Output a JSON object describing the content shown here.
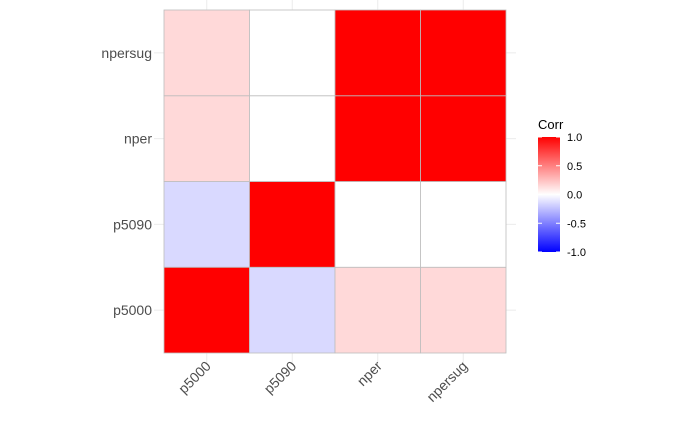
{
  "chart_data": {
    "type": "heatmap",
    "x_categories": [
      "p5000",
      "p5090",
      "nper",
      "npersug"
    ],
    "y_categories": [
      "p5000",
      "p5090",
      "nper",
      "npersug"
    ],
    "matrix": [
      [
        1.0,
        -0.15,
        0.15,
        0.15
      ],
      [
        -0.15,
        1.0,
        0.0,
        0.0
      ],
      [
        0.15,
        0.0,
        1.0,
        1.0
      ],
      [
        0.15,
        0.0,
        1.0,
        1.0
      ]
    ],
    "color_scale": {
      "low": "#0000ff",
      "mid": "#ffffff",
      "high": "#ff0000",
      "limits": [
        -1,
        1
      ]
    },
    "legend": {
      "title": "Corr",
      "ticks": [
        1.0,
        0.5,
        0.0,
        -0.5,
        -1.0
      ],
      "tick_labels": [
        "1.0",
        "0.5",
        "0.0",
        "-0.5",
        "-1.0"
      ],
      "position": "right"
    },
    "grid": true
  }
}
